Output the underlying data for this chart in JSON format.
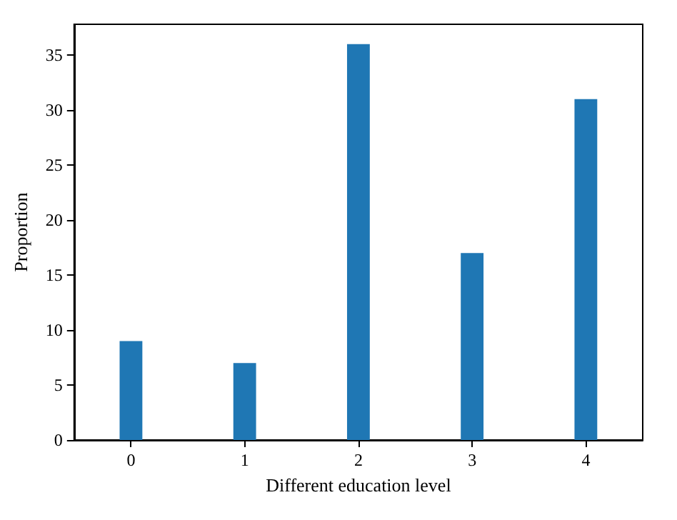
{
  "chart_data": {
    "type": "bar",
    "xlabel": "Different education level",
    "ylabel": "Proportion",
    "categories": [
      "0",
      "1",
      "2",
      "3",
      "4"
    ],
    "values": [
      9,
      7,
      36,
      17,
      31
    ],
    "color": "#1f77b4",
    "ylim": [
      0,
      37.8
    ],
    "yticks": [
      0,
      5,
      10,
      15,
      20,
      25,
      30,
      35
    ]
  }
}
